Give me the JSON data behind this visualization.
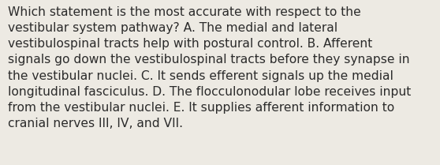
{
  "lines": [
    "Which statement is the most accurate with respect to the",
    "vestibular system pathway? A. The medial and lateral",
    "vestibulospinal tracts help with postural control. B. Afferent",
    "signals go down the vestibulospinal tracts before they synapse in",
    "the vestibular nuclei. C. It sends efferent signals up the medial",
    "longitudinal fasciculus. D. The flocculonodular lobe receives input",
    "from the vestibular nuclei. E. It supplies afferent information to",
    "cranial nerves III, IV, and VII."
  ],
  "background_color": "#edeae3",
  "text_color": "#2b2b2b",
  "font_size": 11.2,
  "fig_width": 5.58,
  "fig_height": 2.09,
  "dpi": 100
}
